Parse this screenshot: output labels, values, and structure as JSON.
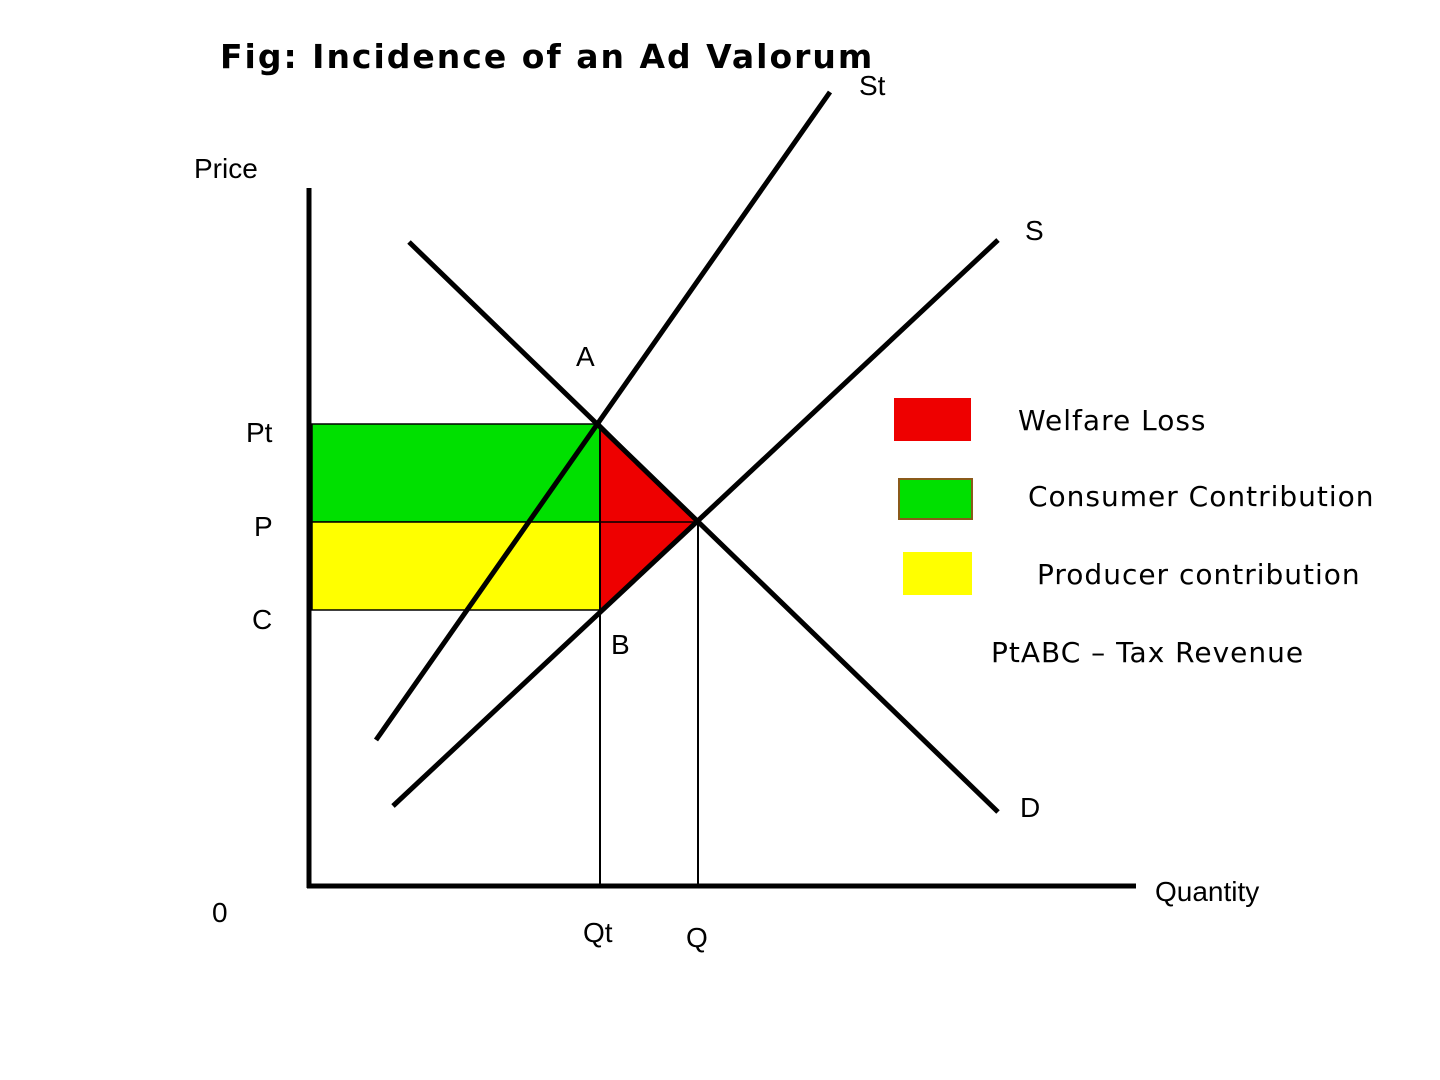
{
  "title": "Fig: Incidence of an Ad Valorum",
  "axes": {
    "y_label": "Price",
    "x_label": "Quantity",
    "origin_label": "0"
  },
  "curves": {
    "supply_taxed": "St",
    "supply": "S",
    "demand": "D"
  },
  "points": {
    "a": "A",
    "b": "B"
  },
  "price_ticks": {
    "pt": "Pt",
    "p": "P",
    "c": "C"
  },
  "quantity_ticks": {
    "qt": "Qt",
    "q": "Q"
  },
  "legend": {
    "welfare_loss": "Welfare Loss",
    "consumer_contribution": "Consumer Contribution",
    "producer_contribution": "Producer contribution",
    "tax_revenue": "PtABC – Tax Revenue"
  },
  "colors": {
    "welfare_loss": "#ee0000",
    "consumer_contribution": "#00e000",
    "producer_contribution": "#ffff00",
    "line": "#000000"
  }
}
